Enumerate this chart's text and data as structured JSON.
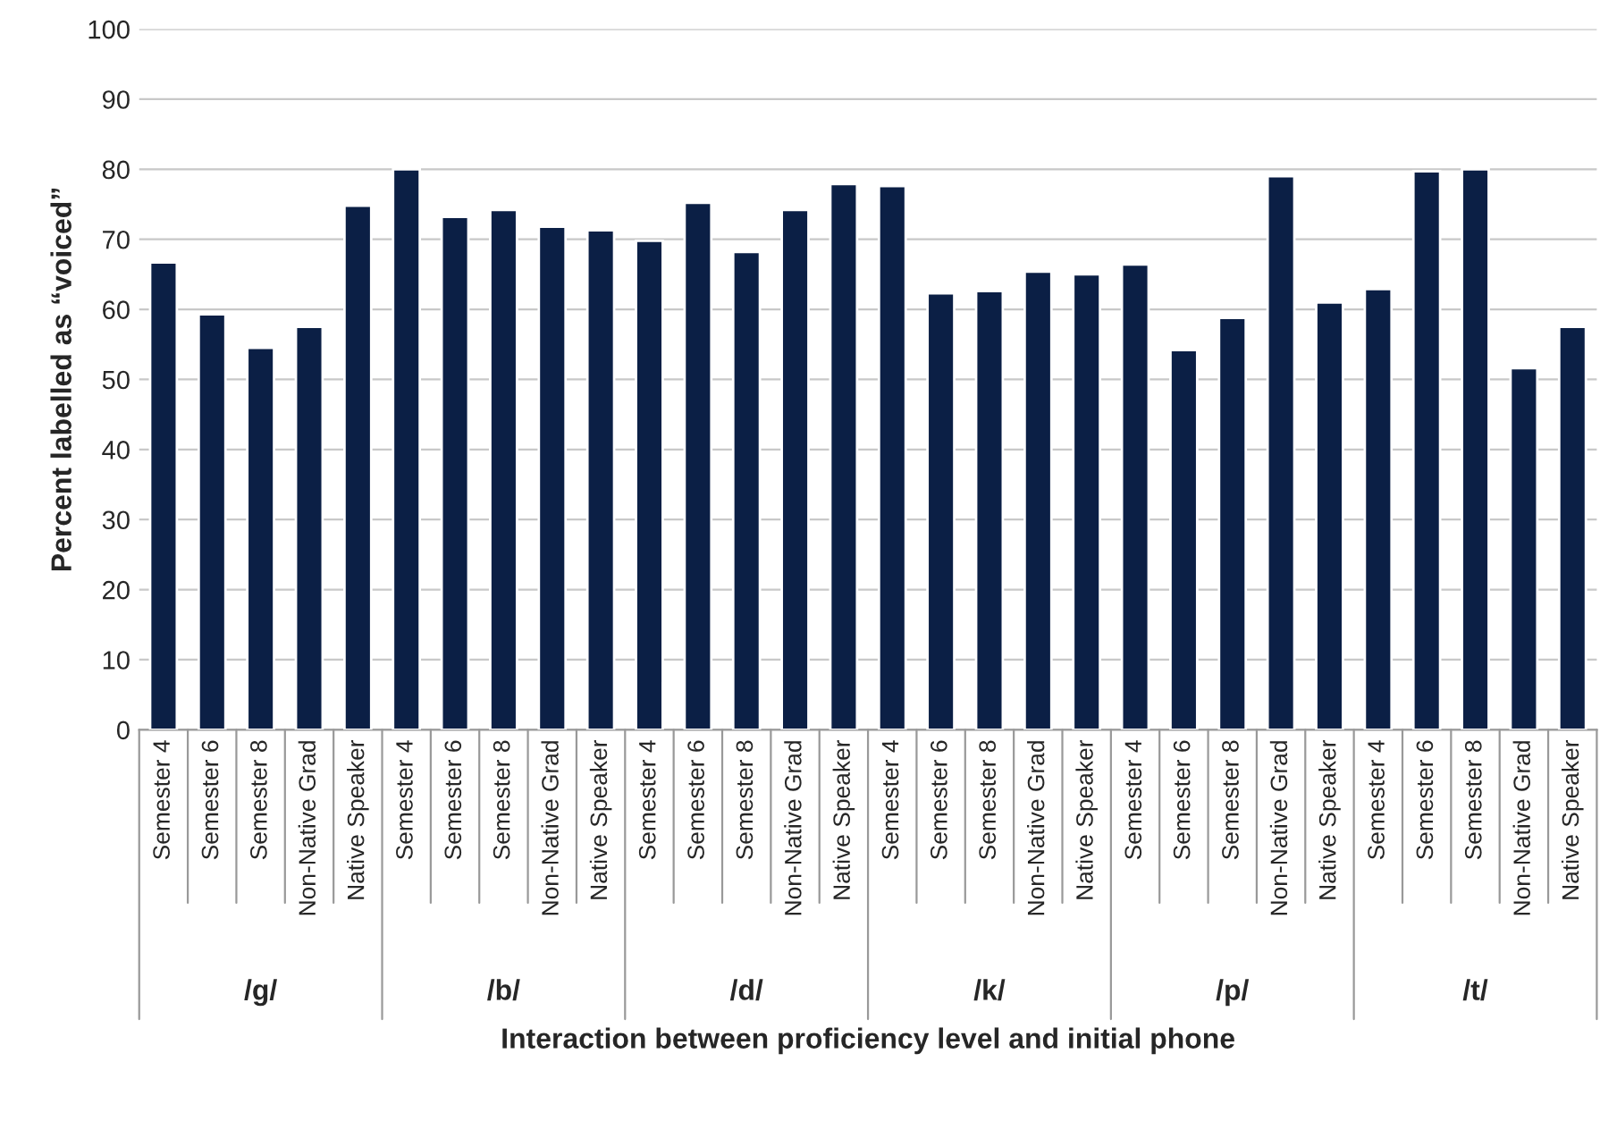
{
  "chart_data": {
    "type": "bar",
    "xlabel": "Interaction between proficiency level and initial phone",
    "ylabel": "Percent labelled as “voiced”",
    "categories": [
      "Semester 4",
      "Semester 6",
      "Semester 8",
      "Non-Native Grad",
      "Native Speaker",
      "Semester 4",
      "Semester 6",
      "Semester 8",
      "Non-Native Grad",
      "Native Speaker",
      "Semester 4",
      "Semester 6",
      "Semester 8",
      "Non-Native Grad",
      "Native Speaker",
      "Semester 4",
      "Semester 6",
      "Semester 8",
      "Non-Native Grad",
      "Native Speaker",
      "Semester 4",
      "Semester 6",
      "Semester 8",
      "Non-Native Grad",
      "Native Speaker",
      "Semester 4",
      "Semester 6",
      "Semester 8",
      "Non-Native Grad",
      "Native Speaker"
    ],
    "values": [
      66.7,
      59.3,
      54.5,
      57.5,
      74.8,
      80.0,
      73.2,
      74.2,
      71.8,
      71.3,
      69.8,
      75.2,
      68.2,
      74.2,
      77.9,
      77.6,
      62.3,
      62.6,
      65.4,
      65.0,
      66.4,
      54.2,
      58.8,
      79.0,
      61.0,
      62.9,
      79.7,
      80.0,
      51.6,
      57.5
    ],
    "color": "#0b1f45",
    "annotations": [
      "/g/",
      "/b/",
      "/d/",
      "/k/",
      "/p/",
      "/t/"
    ],
    "ylim": [
      0,
      100
    ],
    "yticks": [
      0,
      10,
      20,
      30,
      40,
      50,
      60,
      70,
      80,
      90,
      100
    ],
    "grid": "y"
  }
}
